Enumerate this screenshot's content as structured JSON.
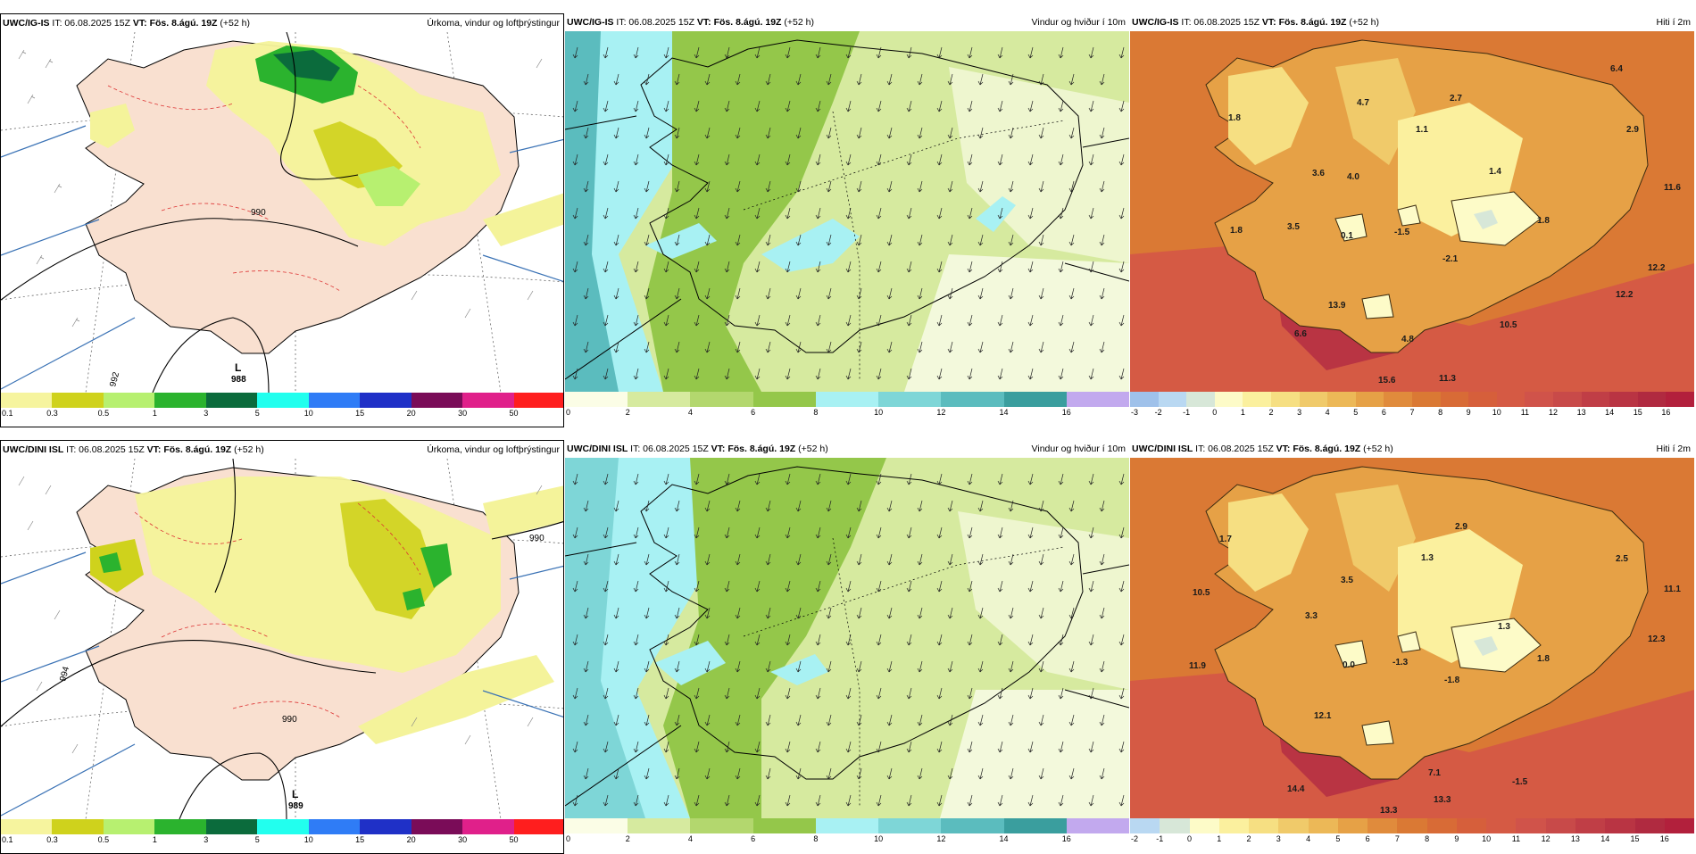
{
  "meta": {
    "colors": {
      "ocean_blue": "#3a72b5",
      "pressure_black": "#000000",
      "precip_yellow": "#f4f39a",
      "land_pink": "#f9e0d0"
    }
  },
  "rows": [
    {
      "model": "UWC/IG-IS",
      "precip_panel": {
        "header": {
          "model": "UWC/IG-IS",
          "it": "IT: 06.08.2025 15Z",
          "vt": "VT: Fös. 8.ágú. 19Z",
          "lead": "(+52 h)",
          "title": "Úrkoma, vindur og loftþrýstingur"
        },
        "pressure_labels": [
          {
            "text": "990"
          },
          {
            "text": "L"
          },
          {
            "text": "988"
          },
          {
            "text": "992"
          }
        ],
        "colorbar": {
          "ticks": [
            "0.1",
            "0.3",
            "0.5",
            "1",
            "3",
            "5",
            "10",
            "15",
            "20",
            "30",
            "50"
          ],
          "colors": [
            "#f6f49e",
            "#cfd21c",
            "#b7f070",
            "#2bb32e",
            "#0b6b3c",
            "#22ffee",
            "#2f7cf6",
            "#1f30c7",
            "#7a0c58",
            "#e0208a",
            "#ff1e1e"
          ]
        }
      },
      "wind_panel": {
        "header": {
          "model": "UWC/IG-IS",
          "it": "IT: 06.08.2025 15Z",
          "vt": "VT: Fös. 8.ágú. 19Z",
          "lead": "(+52 h)",
          "title": "Vindur og hviður í 10m"
        },
        "colorbar": {
          "ticks": [
            "0",
            "2",
            "4",
            "6",
            "8",
            "10",
            "12",
            "14",
            "16"
          ],
          "colors": [
            "#fbfde6",
            "#d6ea9f",
            "#b3d76e",
            "#94c74a",
            "#a8f1f3",
            "#7ed6d7",
            "#5bbcbe",
            "#3a9e9e",
            "#c2a9ee"
          ]
        }
      },
      "temp_panel": {
        "header": {
          "model": "UWC/IG-IS",
          "it": "IT: 06.08.2025 15Z",
          "vt": "VT: Fös. 8.ágú. 19Z",
          "lead": "(+52 h)",
          "title": "Hiti í 2m"
        },
        "labels": [
          "1.8",
          "4.7",
          "2.7",
          "6.4",
          "1.1",
          "3.6",
          "2.9",
          "4.0",
          "11.6",
          "1.4",
          "1.8",
          "3.5",
          "0.1",
          "-1.5",
          "1.8",
          "-2.1",
          "12.2",
          "13.9",
          "12.2",
          "10.5",
          "6.6",
          "4.8",
          "15.6",
          "11.3"
        ],
        "colorbar": {
          "ticks": [
            "-3",
            "-2",
            "-1",
            "0",
            "1",
            "2",
            "3",
            "4",
            "5",
            "6",
            "7",
            "8",
            "9",
            "10",
            "11",
            "12",
            "13",
            "14",
            "15",
            "16"
          ],
          "colors": [
            "#9fc1ea",
            "#b9d8f2",
            "#d7e7d8",
            "#fdfbc8",
            "#fbf09e",
            "#f6df82",
            "#f0ca6a",
            "#ecb857",
            "#e6a146",
            "#e08b3c",
            "#da7934",
            "#d86b36",
            "#d65f3b",
            "#d55a44",
            "#d0534a",
            "#c84a49",
            "#c03e46",
            "#b93443",
            "#b02a40",
            "#b2203c"
          ]
        }
      }
    },
    {
      "model": "UWC/DINI ISL",
      "precip_panel": {
        "header": {
          "model": "UWC/DINI ISL",
          "it": "IT: 06.08.2025 15Z",
          "vt": "VT: Fös. 8.ágú. 19Z",
          "lead": "(+52 h)",
          "title": "Úrkoma, vindur og loftþrýstingur"
        },
        "pressure_labels": [
          {
            "text": "990"
          },
          {
            "text": "990"
          },
          {
            "text": "L"
          },
          {
            "text": "989"
          },
          {
            "text": "994"
          }
        ],
        "colorbar": {
          "ticks": [
            "0.1",
            "0.3",
            "0.5",
            "1",
            "3",
            "5",
            "10",
            "15",
            "20",
            "30",
            "50"
          ],
          "colors": [
            "#f6f49e",
            "#cfd21c",
            "#b7f070",
            "#2bb32e",
            "#0b6b3c",
            "#22ffee",
            "#2f7cf6",
            "#1f30c7",
            "#7a0c58",
            "#e0208a",
            "#ff1e1e"
          ]
        }
      },
      "wind_panel": {
        "header": {
          "model": "UWC/DINI ISL",
          "it": "IT: 06.08.2025 15Z",
          "vt": "VT: Fös. 8.ágú. 19Z",
          "lead": "(+52 h)",
          "title": "Vindur og hviður í 10m"
        },
        "colorbar": {
          "ticks": [
            "0",
            "2",
            "4",
            "6",
            "8",
            "10",
            "12",
            "14",
            "16"
          ],
          "colors": [
            "#fbfde6",
            "#d6ea9f",
            "#b3d76e",
            "#94c74a",
            "#a8f1f3",
            "#7ed6d7",
            "#5bbcbe",
            "#3a9e9e",
            "#c2a9ee"
          ]
        }
      },
      "temp_panel": {
        "header": {
          "model": "UWC/DINI ISL",
          "it": "IT: 06.08.2025 15Z",
          "vt": "VT: Fös. 8.ágú. 19Z",
          "lead": "(+52 h)",
          "title": "Hiti í 2m"
        },
        "labels": [
          "1.7",
          "2.9",
          "1.3",
          "2.5",
          "10.5",
          "3.3",
          "3.5",
          "11.1",
          "1.3",
          "12.3",
          "11.9",
          "0.0",
          "-1.3",
          "-1.8",
          "1.8",
          "12.1",
          "7.1",
          "-1.5",
          "14.4",
          "13.3",
          "13.3"
        ],
        "colorbar": {
          "ticks": [
            "-2",
            "-1",
            "0",
            "1",
            "2",
            "3",
            "4",
            "5",
            "6",
            "7",
            "8",
            "9",
            "10",
            "11",
            "12",
            "13",
            "14",
            "15",
            "16"
          ],
          "colors": [
            "#b9d8f2",
            "#d7e7d8",
            "#fdfbc8",
            "#fbf09e",
            "#f6df82",
            "#f0ca6a",
            "#ecb857",
            "#e6a146",
            "#e08b3c",
            "#da7934",
            "#d86b36",
            "#d65f3b",
            "#d55a44",
            "#d0534a",
            "#c84a49",
            "#c03e46",
            "#b93443",
            "#b02a40",
            "#b2203c"
          ]
        }
      }
    }
  ]
}
